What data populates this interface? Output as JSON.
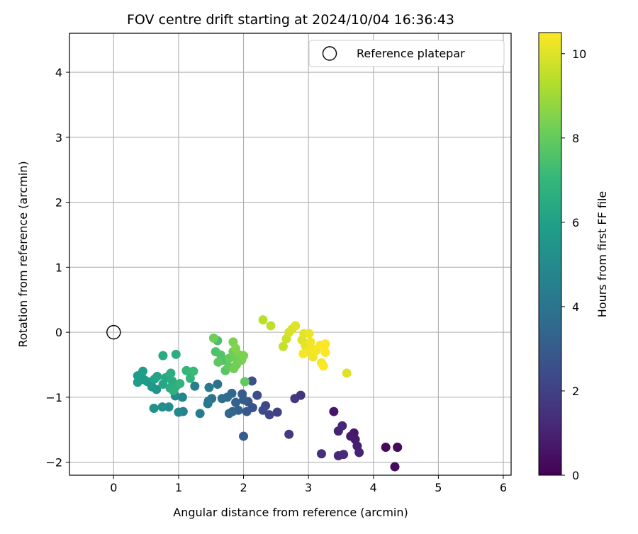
{
  "chart_data": {
    "type": "scatter",
    "title": "FOV centre drift starting at 2024/10/04 16:36:43",
    "xlabel": "Angular distance from reference (arcmin)",
    "ylabel": "Rotation from reference (arcmin)",
    "xlim": [
      -0.68,
      6.12
    ],
    "ylim": [
      -2.2,
      4.6
    ],
    "xticks": [
      "0",
      "1",
      "2",
      "3",
      "4",
      "5",
      "6"
    ],
    "yticks": [
      "−2",
      "−1",
      "0",
      "1",
      "2",
      "3",
      "4"
    ],
    "grid": true,
    "legend": {
      "position": "top-right",
      "entries": [
        "Reference platepar"
      ]
    },
    "reference_point": {
      "name": "Reference platepar",
      "x": 0,
      "y": 0
    },
    "colorbar": {
      "label": "Hours from first FF file",
      "range": [
        0,
        10.5
      ],
      "ticks": [
        "0",
        "2",
        "4",
        "6",
        "8",
        "10"
      ],
      "colormap": "viridis"
    },
    "points": [
      {
        "x": 4.37,
        "y": -1.77,
        "h": 0.1
      },
      {
        "x": 4.19,
        "y": -1.77,
        "h": 0.2
      },
      {
        "x": 4.37,
        "y": -1.77,
        "h": 0.3
      },
      {
        "x": 4.33,
        "y": -2.07,
        "h": 0.3
      },
      {
        "x": 3.39,
        "y": -1.22,
        "h": 0.6
      },
      {
        "x": 3.7,
        "y": -1.55,
        "h": 0.7
      },
      {
        "x": 3.65,
        "y": -1.6,
        "h": 0.8
      },
      {
        "x": 3.72,
        "y": -1.65,
        "h": 0.8
      },
      {
        "x": 3.75,
        "y": -1.75,
        "h": 0.9
      },
      {
        "x": 3.78,
        "y": -1.85,
        "h": 1.0
      },
      {
        "x": 3.46,
        "y": -1.52,
        "h": 1.0
      },
      {
        "x": 3.52,
        "y": -1.44,
        "h": 1.1
      },
      {
        "x": 3.46,
        "y": -1.9,
        "h": 1.2
      },
      {
        "x": 3.54,
        "y": -1.88,
        "h": 1.3
      },
      {
        "x": 3.2,
        "y": -1.87,
        "h": 1.4
      },
      {
        "x": 2.88,
        "y": -0.97,
        "h": 1.6
      },
      {
        "x": 2.79,
        "y": -1.02,
        "h": 1.7
      },
      {
        "x": 2.7,
        "y": -1.57,
        "h": 1.8
      },
      {
        "x": 2.52,
        "y": -1.23,
        "h": 2.0
      },
      {
        "x": 2.4,
        "y": -1.27,
        "h": 2.2
      },
      {
        "x": 2.34,
        "y": -1.13,
        "h": 2.3
      },
      {
        "x": 2.3,
        "y": -1.2,
        "h": 2.4
      },
      {
        "x": 2.21,
        "y": -0.97,
        "h": 2.5
      },
      {
        "x": 2.14,
        "y": -1.16,
        "h": 2.7
      },
      {
        "x": 2.13,
        "y": -0.75,
        "h": 2.6
      },
      {
        "x": 2.07,
        "y": -1.07,
        "h": 2.8
      },
      {
        "x": 2.05,
        "y": -1.22,
        "h": 2.9
      },
      {
        "x": 1.98,
        "y": -0.95,
        "h": 3.0
      },
      {
        "x": 2.0,
        "y": -1.04,
        "h": 3.1
      },
      {
        "x": 2.0,
        "y": -1.6,
        "h": 3.0
      },
      {
        "x": 1.92,
        "y": -1.2,
        "h": 3.2
      },
      {
        "x": 1.88,
        "y": -1.08,
        "h": 3.3
      },
      {
        "x": 1.83,
        "y": -1.22,
        "h": 3.4
      },
      {
        "x": 1.78,
        "y": -1.25,
        "h": 3.5
      },
      {
        "x": 1.82,
        "y": -0.94,
        "h": 3.5
      },
      {
        "x": 1.75,
        "y": -1.0,
        "h": 3.7
      },
      {
        "x": 1.67,
        "y": -1.02,
        "h": 3.8
      },
      {
        "x": 1.6,
        "y": -0.8,
        "h": 3.9
      },
      {
        "x": 1.51,
        "y": -1.02,
        "h": 4.0
      },
      {
        "x": 1.46,
        "y": -1.06,
        "h": 4.1
      },
      {
        "x": 1.45,
        "y": -1.1,
        "h": 4.2
      },
      {
        "x": 1.47,
        "y": -0.85,
        "h": 4.3
      },
      {
        "x": 1.33,
        "y": -1.25,
        "h": 4.4
      },
      {
        "x": 1.25,
        "y": -0.83,
        "h": 4.5
      },
      {
        "x": 1.07,
        "y": -1.22,
        "h": 4.7
      },
      {
        "x": 1.06,
        "y": -1.0,
        "h": 4.8
      },
      {
        "x": 1.0,
        "y": -1.23,
        "h": 4.9
      },
      {
        "x": 0.95,
        "y": -0.98,
        "h": 5.0
      },
      {
        "x": 0.85,
        "y": -1.15,
        "h": 5.1
      },
      {
        "x": 0.75,
        "y": -1.15,
        "h": 5.2
      },
      {
        "x": 0.62,
        "y": -1.17,
        "h": 5.3
      },
      {
        "x": 0.66,
        "y": -0.88,
        "h": 5.4
      },
      {
        "x": 0.59,
        "y": -0.84,
        "h": 5.5
      },
      {
        "x": 0.52,
        "y": -0.76,
        "h": 5.6
      },
      {
        "x": 0.47,
        "y": -0.73,
        "h": 5.7
      },
      {
        "x": 0.37,
        "y": -0.77,
        "h": 5.8
      },
      {
        "x": 0.37,
        "y": -0.67,
        "h": 5.8
      },
      {
        "x": 0.45,
        "y": -0.6,
        "h": 5.9
      },
      {
        "x": 0.63,
        "y": -0.72,
        "h": 6.0
      },
      {
        "x": 0.67,
        "y": -0.68,
        "h": 6.1
      },
      {
        "x": 0.76,
        "y": -0.8,
        "h": 6.2
      },
      {
        "x": 0.8,
        "y": -0.7,
        "h": 6.3
      },
      {
        "x": 0.86,
        "y": -0.66,
        "h": 6.4
      },
      {
        "x": 0.87,
        "y": -0.86,
        "h": 6.5
      },
      {
        "x": 0.9,
        "y": -0.75,
        "h": 6.5
      },
      {
        "x": 0.96,
        "y": -0.83,
        "h": 6.6
      },
      {
        "x": 0.92,
        "y": -0.9,
        "h": 6.7
      },
      {
        "x": 1.02,
        "y": -0.79,
        "h": 6.8
      },
      {
        "x": 0.76,
        "y": -0.36,
        "h": 6.4
      },
      {
        "x": 0.96,
        "y": -0.34,
        "h": 6.5
      },
      {
        "x": 0.88,
        "y": -0.63,
        "h": 6.6
      },
      {
        "x": 1.12,
        "y": -0.59,
        "h": 6.9
      },
      {
        "x": 1.18,
        "y": -0.71,
        "h": 6.9
      },
      {
        "x": 1.2,
        "y": -0.61,
        "h": 7.0
      },
      {
        "x": 1.23,
        "y": -0.6,
        "h": 7.1
      },
      {
        "x": 2.02,
        "y": -0.76,
        "h": 7.9
      },
      {
        "x": 1.6,
        "y": -0.13,
        "h": 7.4
      },
      {
        "x": 1.57,
        "y": -0.3,
        "h": 7.5
      },
      {
        "x": 1.65,
        "y": -0.35,
        "h": 7.6
      },
      {
        "x": 1.68,
        "y": -0.43,
        "h": 7.6
      },
      {
        "x": 1.72,
        "y": -0.59,
        "h": 7.7
      },
      {
        "x": 1.61,
        "y": -0.46,
        "h": 7.8
      },
      {
        "x": 1.77,
        "y": -0.53,
        "h": 7.9
      },
      {
        "x": 1.78,
        "y": -0.4,
        "h": 8.0
      },
      {
        "x": 1.84,
        "y": -0.3,
        "h": 8.1
      },
      {
        "x": 1.86,
        "y": -0.38,
        "h": 8.1
      },
      {
        "x": 1.89,
        "y": -0.5,
        "h": 8.2
      },
      {
        "x": 1.85,
        "y": -0.56,
        "h": 8.2
      },
      {
        "x": 1.92,
        "y": -0.34,
        "h": 8.3
      },
      {
        "x": 1.97,
        "y": -0.43,
        "h": 8.3
      },
      {
        "x": 2.0,
        "y": -0.36,
        "h": 8.4
      },
      {
        "x": 1.84,
        "y": -0.15,
        "h": 8.4
      },
      {
        "x": 1.88,
        "y": -0.25,
        "h": 8.5
      },
      {
        "x": 1.54,
        "y": -0.09,
        "h": 8.2
      },
      {
        "x": 2.3,
        "y": 0.19,
        "h": 9.4
      },
      {
        "x": 2.42,
        "y": 0.1,
        "h": 9.5
      },
      {
        "x": 2.61,
        "y": -0.22,
        "h": 9.6
      },
      {
        "x": 2.66,
        "y": -0.1,
        "h": 9.7
      },
      {
        "x": 2.7,
        "y": 0.0,
        "h": 9.8
      },
      {
        "x": 2.75,
        "y": 0.05,
        "h": 9.9
      },
      {
        "x": 2.8,
        "y": 0.1,
        "h": 10.0
      },
      {
        "x": 2.9,
        "y": -0.12,
        "h": 10.0
      },
      {
        "x": 2.93,
        "y": -0.02,
        "h": 10.1
      },
      {
        "x": 2.95,
        "y": -0.2,
        "h": 10.1
      },
      {
        "x": 2.98,
        "y": -0.3,
        "h": 10.2
      },
      {
        "x": 3.01,
        "y": -0.02,
        "h": 10.2
      },
      {
        "x": 3.03,
        "y": -0.15,
        "h": 10.3
      },
      {
        "x": 3.05,
        "y": -0.25,
        "h": 10.3
      },
      {
        "x": 3.07,
        "y": -0.38,
        "h": 10.3
      },
      {
        "x": 2.92,
        "y": -0.33,
        "h": 10.4
      },
      {
        "x": 3.12,
        "y": -0.28,
        "h": 10.4
      },
      {
        "x": 3.18,
        "y": -0.2,
        "h": 10.4
      },
      {
        "x": 3.2,
        "y": -0.47,
        "h": 10.4
      },
      {
        "x": 3.23,
        "y": -0.52,
        "h": 10.5
      },
      {
        "x": 3.24,
        "y": -0.22,
        "h": 10.5
      },
      {
        "x": 3.26,
        "y": -0.18,
        "h": 10.5
      },
      {
        "x": 3.26,
        "y": -0.31,
        "h": 10.5
      },
      {
        "x": 3.59,
        "y": -0.63,
        "h": 10.0
      }
    ]
  }
}
